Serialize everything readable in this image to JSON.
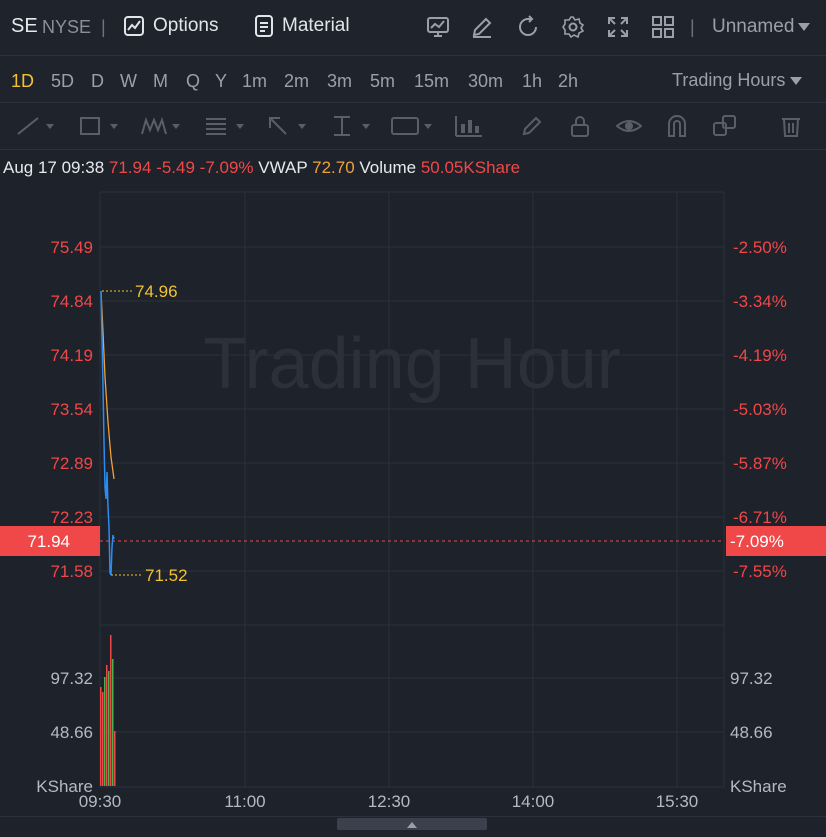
{
  "header": {
    "symbol": "SE",
    "exchange": "NYSE",
    "separator": "|",
    "options_label": "Options",
    "material_label": "Material",
    "layout_name": "Unnamed",
    "icons": [
      "chart-indicator-icon",
      "draw-icon",
      "refresh-icon",
      "settings-icon",
      "fullscreen-icon",
      "grid-layout-icon"
    ]
  },
  "timeframes": {
    "items": [
      "1D",
      "5D",
      "D",
      "W",
      "M",
      "Q",
      "Y",
      "1m",
      "2m",
      "3m",
      "5m",
      "15m",
      "30m",
      "1h",
      "2h"
    ],
    "active": "1D",
    "session_label": "Trading Hours"
  },
  "info": {
    "datetime": "Aug 17 09:38",
    "price": "71.94",
    "change": "-5.49",
    "change_pct": "-7.09%",
    "vwap_label": "VWAP",
    "vwap_value": "72.70",
    "volume_label": "Volume",
    "volume_value": "50.05KShare"
  },
  "chart_data": {
    "type": "line",
    "watermark": "Trading Hour",
    "y_left_ticks": [
      "75.49",
      "74.84",
      "74.19",
      "73.54",
      "72.89",
      "72.23",
      "71.58"
    ],
    "y_right_ticks": [
      "-2.50%",
      "-3.34%",
      "-4.19%",
      "-5.03%",
      "-5.87%",
      "-6.71%",
      "-7.55%"
    ],
    "current_price": "71.94",
    "current_pct": "-7.09%",
    "high_marker": "74.96",
    "low_marker": "71.52",
    "x_ticks": [
      "09:30",
      "11:00",
      "12:30",
      "14:00",
      "15:30"
    ],
    "volume_ticks": [
      "97.32",
      "48.66"
    ],
    "volume_unit": "KShare",
    "colors": {
      "price_line": "#2d8cf0",
      "vwap_line": "#f0a13a",
      "up": "#4caf50",
      "down": "#f04848",
      "marker": "#f2c230"
    }
  }
}
